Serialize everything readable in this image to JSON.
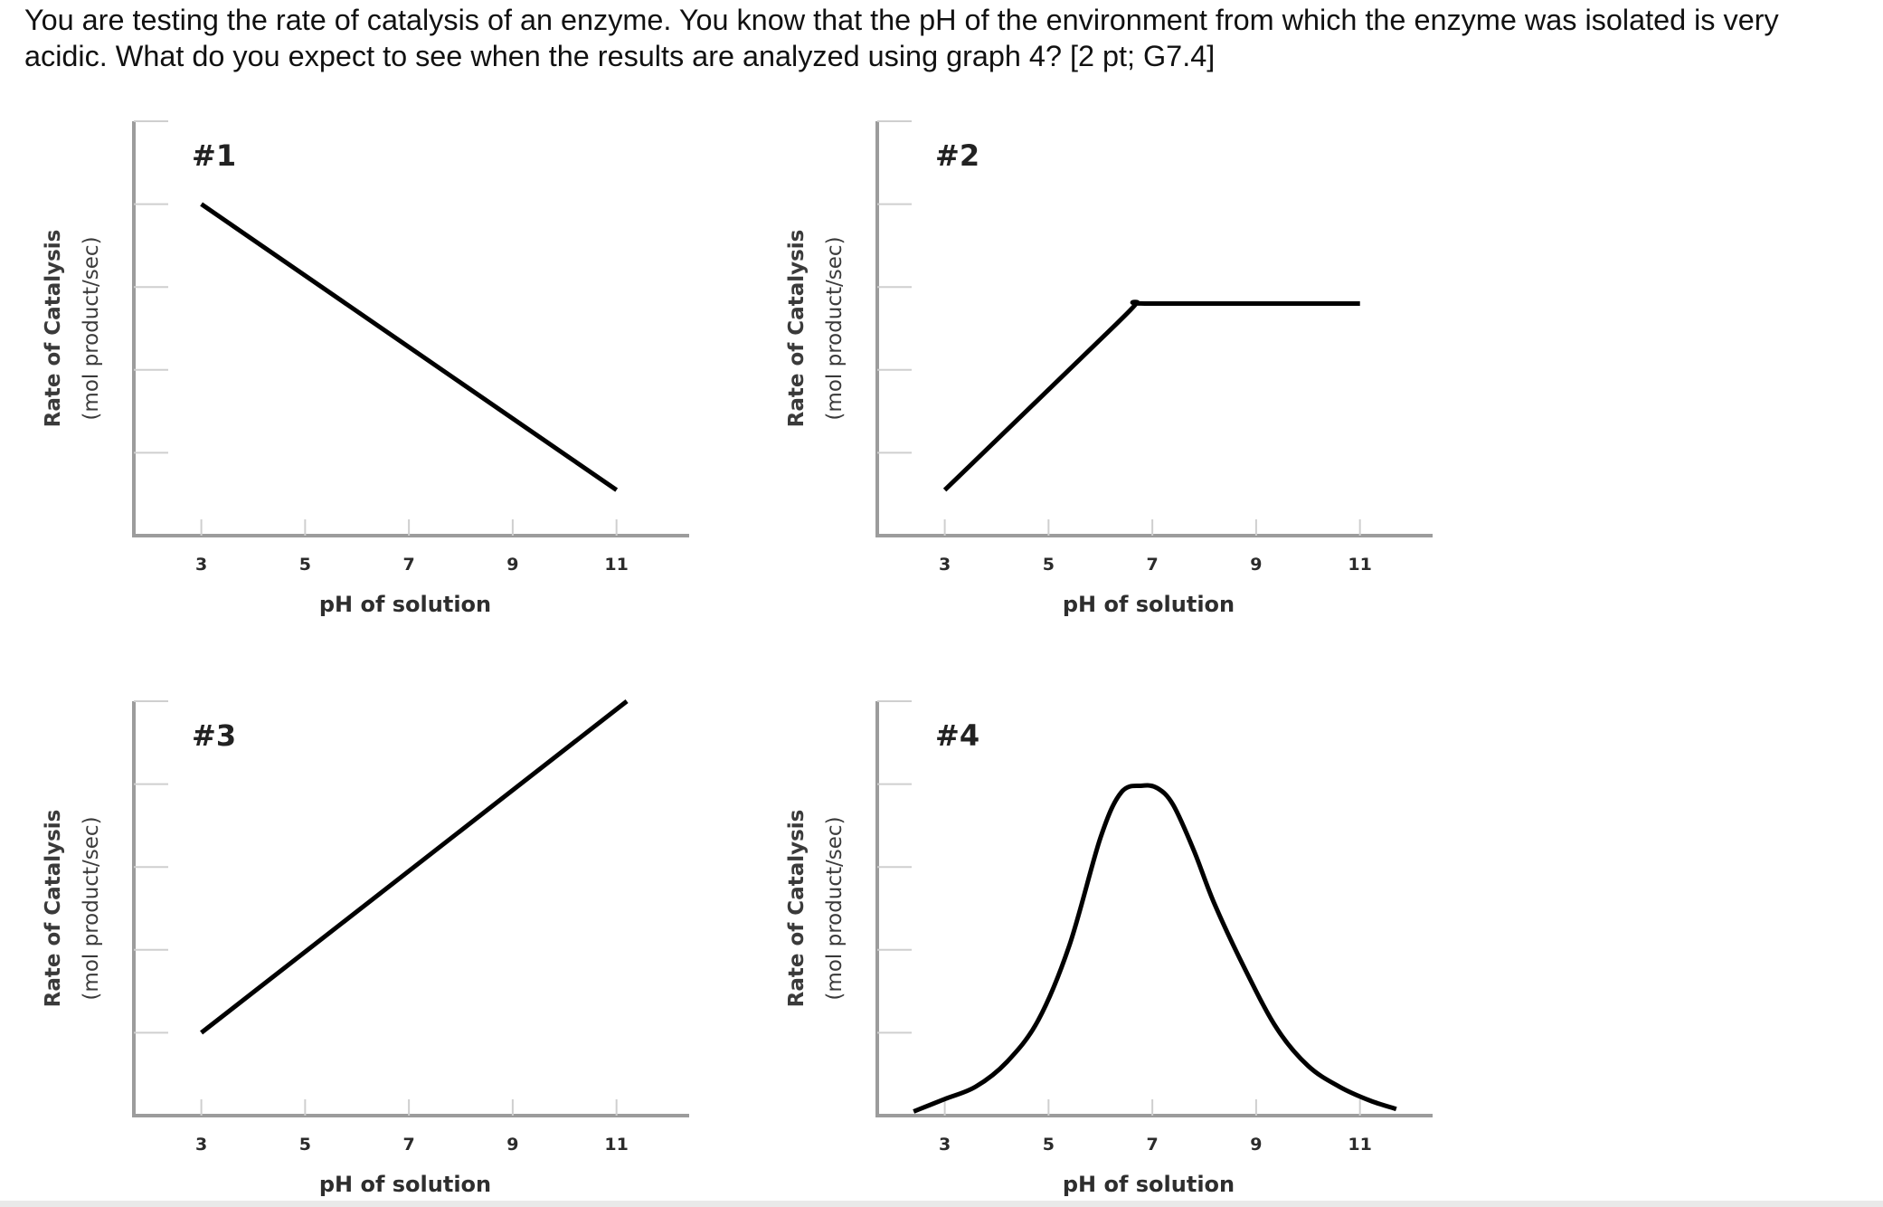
{
  "question": {
    "text": "You are testing the rate of catalysis of an enzyme. You know that the pH of the environment from which the enzyme was isolated is very acidic. What do you expect to see when the results are analyzed using graph 4? [2 pt; G7.4]"
  },
  "chart_data": [
    {
      "type": "line",
      "title": "#1",
      "xlabel": "pH of solution",
      "ylabel": "Rate of Catalysis",
      "ylabel_unit": "(mol product/sec)",
      "xticks": [
        3,
        5,
        7,
        9,
        11
      ],
      "xlim": [
        1.7,
        12.4
      ],
      "ylim": [
        0,
        5
      ],
      "y_gridlines": [
        1,
        2,
        3,
        4
      ],
      "grid": false,
      "series": [
        {
          "x": [
            3,
            11
          ],
          "y": [
            4,
            0.55
          ]
        }
      ]
    },
    {
      "type": "line",
      "title": "#2",
      "xlabel": "pH of solution",
      "ylabel": "Rate of Catalysis",
      "ylabel_unit": "(mol product/sec)",
      "xticks": [
        3,
        5,
        7,
        9,
        11
      ],
      "xlim": [
        1.7,
        12.4
      ],
      "ylim": [
        0,
        5
      ],
      "y_gridlines": [
        1,
        2,
        3,
        4
      ],
      "grid": false,
      "series": [
        {
          "x": [
            3,
            6.3,
            6.7,
            7,
            11
          ],
          "y": [
            0.55,
            2.55,
            2.8,
            2.8,
            2.8
          ]
        }
      ]
    },
    {
      "type": "line",
      "title": "#3",
      "xlabel": "pH of solution",
      "ylabel": "Rate of Catalysis",
      "ylabel_unit": "(mol product/sec)",
      "xticks": [
        3,
        5,
        7,
        9,
        11
      ],
      "xlim": [
        1.7,
        12.4
      ],
      "ylim": [
        0,
        5
      ],
      "y_gridlines": [
        1,
        2,
        3,
        4
      ],
      "grid": false,
      "series": [
        {
          "x": [
            3,
            11.2
          ],
          "y": [
            1,
            5
          ]
        }
      ]
    },
    {
      "type": "line",
      "title": "#4",
      "xlabel": "pH of solution",
      "ylabel": "Rate of Catalysis",
      "ylabel_unit": "(mol product/sec)",
      "xticks": [
        3,
        5,
        7,
        9,
        11
      ],
      "xlim": [
        1.7,
        12.4
      ],
      "ylim": [
        0,
        5
      ],
      "y_gridlines": [
        1,
        2,
        3,
        4
      ],
      "grid": false,
      "series": [
        {
          "x": [
            2.4,
            3.0,
            3.6,
            4.2,
            4.8,
            5.4,
            6.0,
            6.4,
            6.8,
            7.1,
            7.4,
            7.8,
            8.2,
            8.8,
            9.4,
            10.0,
            10.6,
            11.2,
            11.7
          ],
          "y": [
            0.05,
            0.2,
            0.35,
            0.65,
            1.15,
            2.05,
            3.35,
            3.9,
            3.98,
            3.95,
            3.75,
            3.2,
            2.55,
            1.75,
            1.05,
            0.6,
            0.35,
            0.18,
            0.08
          ]
        }
      ]
    }
  ]
}
